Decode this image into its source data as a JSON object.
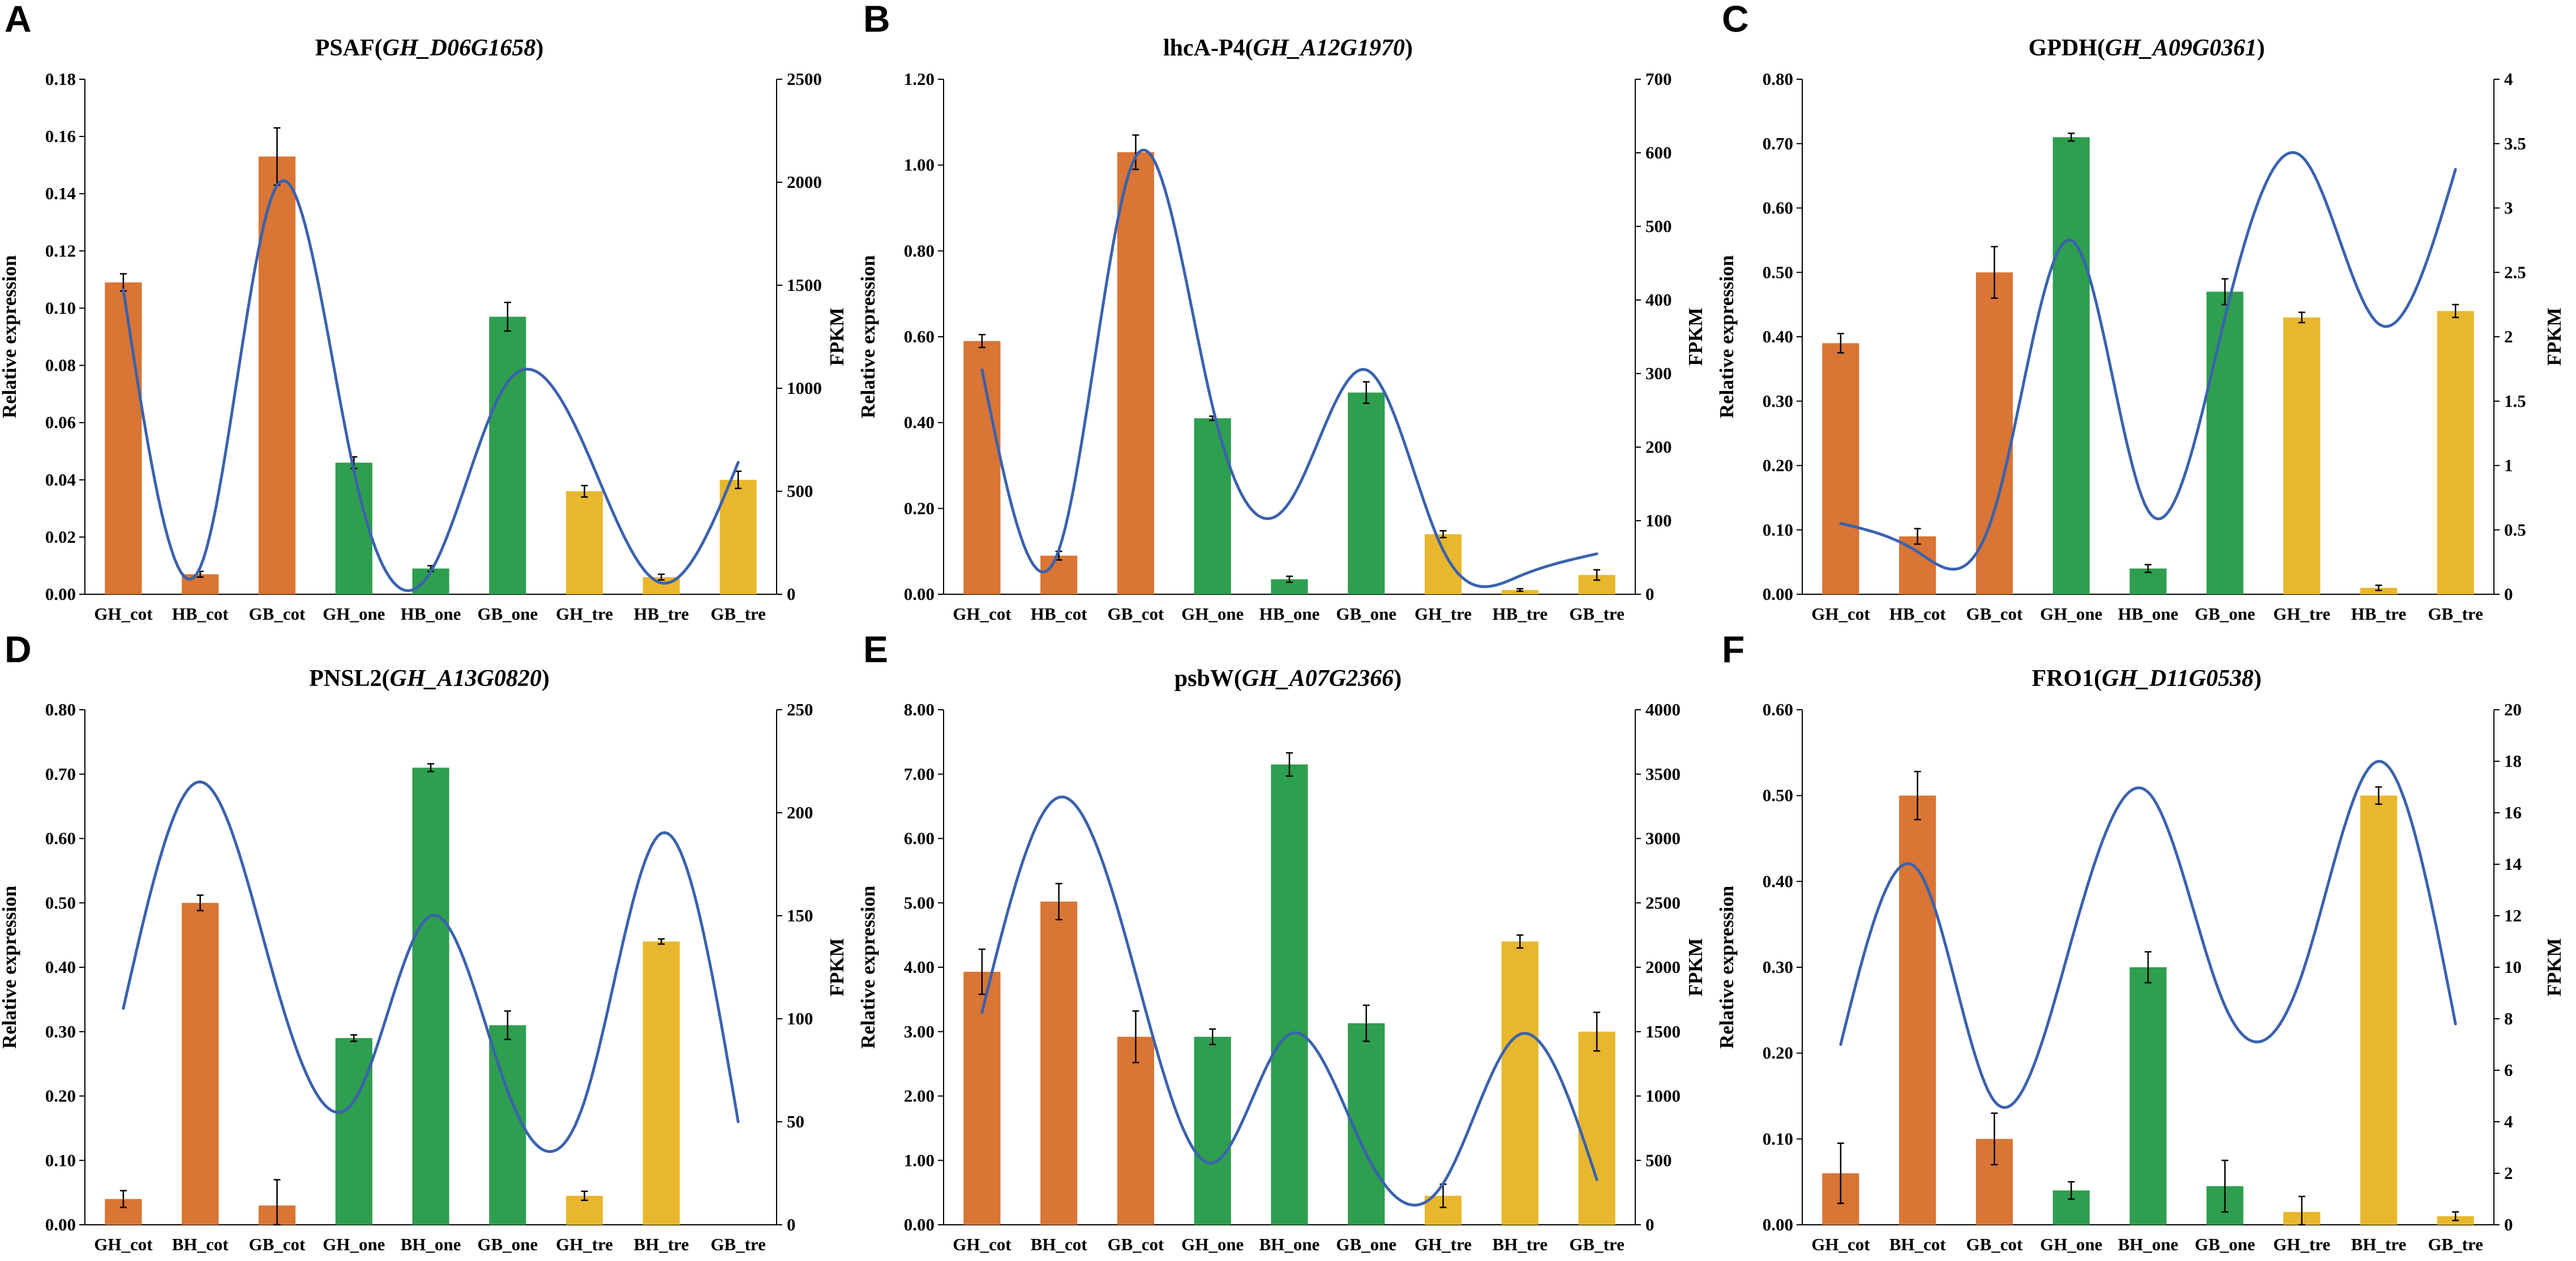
{
  "colors": {
    "cot": "#D97535",
    "one": "#2E9E4F",
    "tre": "#E8B72E",
    "line": "#3A62AE"
  },
  "chart_data": [
    {
      "panel": "A",
      "type": "bar",
      "title": {
        "prefix": "PSAF(",
        "gene": "GH_D06G1658",
        "suffix": ")"
      },
      "categories": [
        "GH_cot",
        "HB_cot",
        "GB_cot",
        "GH_one",
        "HB_one",
        "GB_one",
        "GH_tre",
        "HB_tre",
        "GB_tre"
      ],
      "groups": [
        "cot",
        "cot",
        "cot",
        "one",
        "one",
        "one",
        "tre",
        "tre",
        "tre"
      ],
      "values": [
        0.109,
        0.007,
        0.153,
        0.046,
        0.009,
        0.097,
        0.036,
        0.006,
        0.04
      ],
      "errors": [
        0.003,
        0.001,
        0.01,
        0.002,
        0.001,
        0.005,
        0.002,
        0.001,
        0.003
      ],
      "ylim": [
        0,
        0.18
      ],
      "yticks": [
        "0.00",
        "0.02",
        "0.04",
        "0.06",
        "0.08",
        "0.10",
        "0.12",
        "0.14",
        "0.16",
        "0.18"
      ],
      "ylabel": "Relative expression",
      "y2label": "FPKM",
      "y2lim": [
        0,
        2500
      ],
      "y2ticks": [
        "0",
        "500",
        "1000",
        "1500",
        "2000",
        "2500"
      ],
      "line_values": [
        1480,
        130,
        1985,
        600,
        110,
        1030,
        720,
        55,
        640
      ]
    },
    {
      "panel": "B",
      "type": "bar",
      "title": {
        "prefix": "lhcA-P4(",
        "gene": "GH_A12G1970",
        "suffix": ")"
      },
      "categories": [
        "GH_cot",
        "HB_cot",
        "GB_cot",
        "GH_one",
        "HB_one",
        "GB_one",
        "GH_tre",
        "HB_tre",
        "GB_tre"
      ],
      "groups": [
        "cot",
        "cot",
        "cot",
        "one",
        "one",
        "one",
        "tre",
        "tre",
        "tre"
      ],
      "values": [
        0.59,
        0.09,
        1.03,
        0.41,
        0.035,
        0.47,
        0.14,
        0.01,
        0.045
      ],
      "errors": [
        0.015,
        0.01,
        0.04,
        0.005,
        0.007,
        0.025,
        0.008,
        0.003,
        0.012
      ],
      "ylim": [
        0,
        1.2
      ],
      "yticks": [
        "0.00",
        "0.20",
        "0.40",
        "0.60",
        "0.80",
        "1.00",
        "1.20"
      ],
      "ylabel": "Relative expression",
      "y2label": "FPKM",
      "y2lim": [
        0,
        700
      ],
      "y2ticks": [
        "0",
        "100",
        "200",
        "300",
        "400",
        "500",
        "600",
        "700"
      ],
      "line_values": [
        305,
        60,
        595,
        255,
        125,
        305,
        60,
        25,
        55
      ]
    },
    {
      "panel": "C",
      "type": "bar",
      "title": {
        "prefix": "GPDH(",
        "gene": "GH_A09G0361",
        "suffix": ")"
      },
      "categories": [
        "GH_cot",
        "HB_cot",
        "GB_cot",
        "GH_one",
        "HB_one",
        "GB_one",
        "GH_tre",
        "HB_tre",
        "GB_tre"
      ],
      "groups": [
        "cot",
        "cot",
        "cot",
        "one",
        "one",
        "one",
        "tre",
        "tre",
        "tre"
      ],
      "values": [
        0.39,
        0.09,
        0.5,
        0.71,
        0.04,
        0.47,
        0.43,
        0.01,
        0.44
      ],
      "errors": [
        0.015,
        0.012,
        0.04,
        0.006,
        0.006,
        0.02,
        0.008,
        0.004,
        0.01
      ],
      "ylim": [
        0,
        0.8
      ],
      "yticks": [
        "0.00",
        "0.10",
        "0.20",
        "0.30",
        "0.40",
        "0.50",
        "0.60",
        "0.70",
        "0.80"
      ],
      "ylabel": "Relative expression",
      "y2label": "FPKM",
      "y2lim": [
        0,
        4
      ],
      "y2ticks": [
        "0",
        "0.5",
        "1",
        "1.5",
        "2",
        "2.5",
        "3",
        "3.5",
        "4"
      ],
      "line_values": [
        0.55,
        0.33,
        0.65,
        2.75,
        0.65,
        2.15,
        3.4,
        2.1,
        3.3
      ]
    },
    {
      "panel": "D",
      "type": "bar",
      "title": {
        "prefix": "PNSL2(",
        "gene": "GH_A13G0820",
        "suffix": ")"
      },
      "categories": [
        "GH_cot",
        "BH_cot",
        "GB_cot",
        "GH_one",
        "BH_one",
        "GB_one",
        "GH_tre",
        "BH_tre",
        "GB_tre"
      ],
      "groups": [
        "cot",
        "cot",
        "cot",
        "one",
        "one",
        "one",
        "tre",
        "tre",
        "tre"
      ],
      "values": [
        0.04,
        0.5,
        0.03,
        0.29,
        0.71,
        0.31,
        0.045,
        0.44,
        0.0
      ],
      "errors": [
        0.013,
        0.012,
        0.04,
        0.005,
        0.006,
        0.022,
        0.007,
        0.004,
        0.0
      ],
      "ylim": [
        0,
        0.8
      ],
      "yticks": [
        "0.00",
        "0.10",
        "0.20",
        "0.30",
        "0.40",
        "0.50",
        "0.60",
        "0.70",
        "0.80"
      ],
      "ylabel": "Relative expression",
      "y2label": "FPKM",
      "y2lim": [
        0,
        250
      ],
      "y2ticks": [
        "0",
        "50",
        "100",
        "150",
        "200",
        "250"
      ],
      "line_values": [
        105,
        215,
        115,
        60,
        150,
        65,
        60,
        190,
        50
      ]
    },
    {
      "panel": "E",
      "type": "bar",
      "title": {
        "prefix": "psbW(",
        "gene": "GH_A07G2366",
        "suffix": ")"
      },
      "categories": [
        "GH_cot",
        "BH_cot",
        "GB_cot",
        "GH_one",
        "BH_one",
        "GB_one",
        "GH_tre",
        "BH_tre",
        "GB_tre"
      ],
      "groups": [
        "cot",
        "cot",
        "cot",
        "one",
        "one",
        "one",
        "tre",
        "tre",
        "tre"
      ],
      "values": [
        3.93,
        5.02,
        2.92,
        2.92,
        7.15,
        3.13,
        0.45,
        4.4,
        3.0
      ],
      "errors": [
        0.35,
        0.28,
        0.4,
        0.12,
        0.18,
        0.28,
        0.18,
        0.1,
        0.3
      ],
      "ylim": [
        0,
        8
      ],
      "yticks": [
        "0.00",
        "1.00",
        "2.00",
        "3.00",
        "4.00",
        "5.00",
        "6.00",
        "7.00",
        "8.00"
      ],
      "ylabel": "Relative expression",
      "y2label": "FPKM",
      "y2lim": [
        0,
        4000
      ],
      "y2ticks": [
        "0",
        "500",
        "1000",
        "1500",
        "2000",
        "2500",
        "3000",
        "3500",
        "4000"
      ],
      "line_values": [
        1650,
        3320,
        1950,
        480,
        1480,
        550,
        320,
        1480,
        350
      ]
    },
    {
      "panel": "F",
      "type": "bar",
      "title": {
        "prefix": "FRO1(",
        "gene": "GH_D11G0538",
        "suffix": ")"
      },
      "categories": [
        "GH_cot",
        "BH_cot",
        "GB_cot",
        "GH_one",
        "BH_one",
        "GB_one",
        "GH_tre",
        "BH_tre",
        "GB_tre"
      ],
      "groups": [
        "cot",
        "cot",
        "cot",
        "one",
        "one",
        "one",
        "tre",
        "tre",
        "tre"
      ],
      "values": [
        0.06,
        0.5,
        0.1,
        0.04,
        0.3,
        0.045,
        0.015,
        0.5,
        0.01
      ],
      "errors": [
        0.035,
        0.028,
        0.03,
        0.01,
        0.018,
        0.03,
        0.018,
        0.01,
        0.005
      ],
      "ylim": [
        0,
        0.6
      ],
      "yticks": [
        "0.00",
        "0.10",
        "0.20",
        "0.30",
        "0.40",
        "0.50",
        "0.60"
      ],
      "ylabel": "Relative expression",
      "y2label": "FPKM",
      "y2lim": [
        0,
        20
      ],
      "y2ticks": [
        "0",
        "2",
        "4",
        "6",
        "8",
        "10",
        "12",
        "14",
        "16",
        "18",
        "20"
      ],
      "line_values": [
        7,
        13.8,
        4.8,
        11,
        16.8,
        8.5,
        9.7,
        18,
        7.8
      ]
    }
  ]
}
